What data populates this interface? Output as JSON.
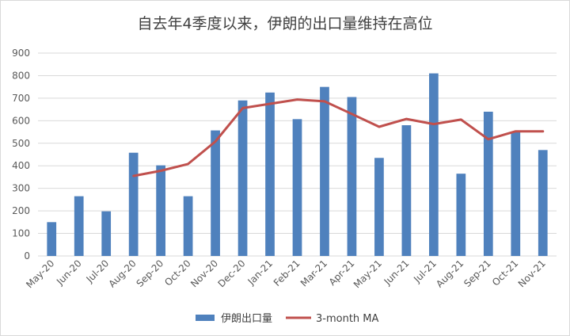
{
  "chart_data": {
    "type": "bar",
    "title": "自去年4季度以来，伊朗的出口量维持在高位",
    "categories": [
      "May-20",
      "Jun-20",
      "Jul-20",
      "Aug-20",
      "Sep-20",
      "Oct-20",
      "Nov-20",
      "Dec-20",
      "Jan-21",
      "Feb-21",
      "Mar-21",
      "Apr-21",
      "May-21",
      "Jun-21",
      "Jul-21",
      "Aug-21",
      "Sep-21",
      "Oct-21",
      "Nov-21"
    ],
    "series": [
      {
        "name": "伊朗出口量",
        "type": "bar",
        "color": "#4f81bd",
        "values": [
          150,
          265,
          198,
          458,
          402,
          265,
          557,
          690,
          725,
          607,
          750,
          705,
          435,
          580,
          810,
          365,
          640,
          550,
          470
        ]
      },
      {
        "name": "3-month MA",
        "type": "line",
        "color": "#c0504d",
        "values": [
          null,
          null,
          null,
          355,
          378,
          408,
          508,
          656,
          675,
          694,
          686,
          630,
          573,
          608,
          585,
          605,
          518,
          553,
          553
        ]
      }
    ],
    "ylim": [
      0,
      900
    ],
    "yticks": [
      0,
      100,
      200,
      300,
      400,
      500,
      600,
      700,
      800,
      900
    ],
    "grid": true,
    "legend": "bottom"
  }
}
